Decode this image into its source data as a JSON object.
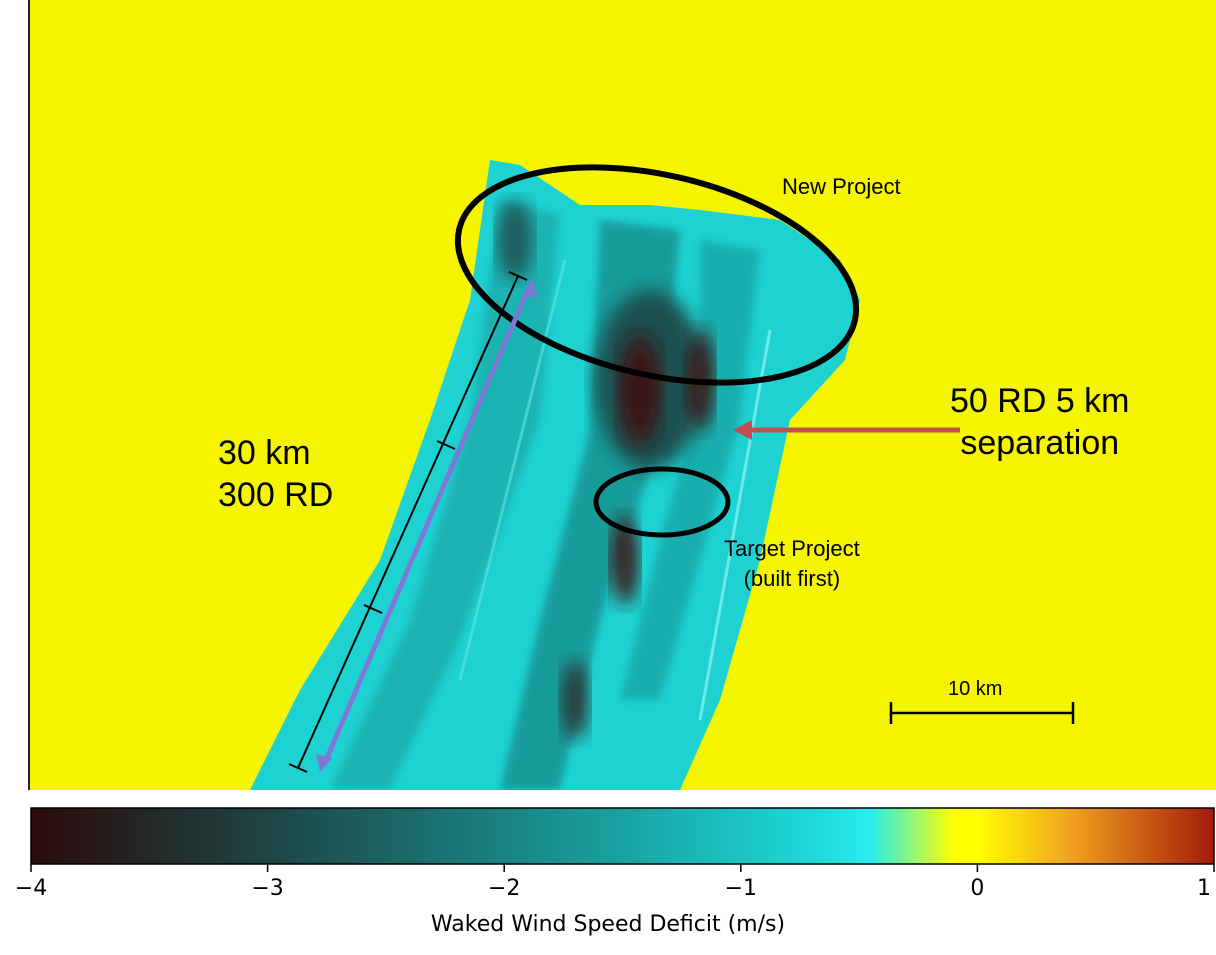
{
  "chart_data": {
    "type": "heatmap",
    "colorbar": {
      "label": "Waked Wind Speed Deficit (m/s)",
      "range": [
        -4,
        1
      ],
      "ticks": [
        -4,
        -3,
        -2,
        -1,
        0,
        1
      ],
      "tick_labels": [
        "−4",
        "−3",
        "−2",
        "−1",
        "0",
        "1"
      ],
      "colors": {
        "min": "#2b0a0a",
        "mid_dark": "#1f6b6b",
        "teal": "#18b8b8",
        "cyan": "#1ee8e8",
        "zero": "#ffff00",
        "max": "#a31a0a"
      }
    },
    "field_colors": {
      "background": "#f5f500",
      "wake": "#1fcfcf",
      "deep_wake": "#0e5a5a",
      "core": "#3a1414"
    },
    "annotations": {
      "new_project": "New Project",
      "target_project_line1": "Target Project",
      "target_project_line2": "(built first)",
      "separation_line1": "50 RD 5 km",
      "separation_line2": "separation",
      "length_line1": "30 km",
      "length_line2": "300 RD",
      "scale_bar": "10 km"
    }
  }
}
